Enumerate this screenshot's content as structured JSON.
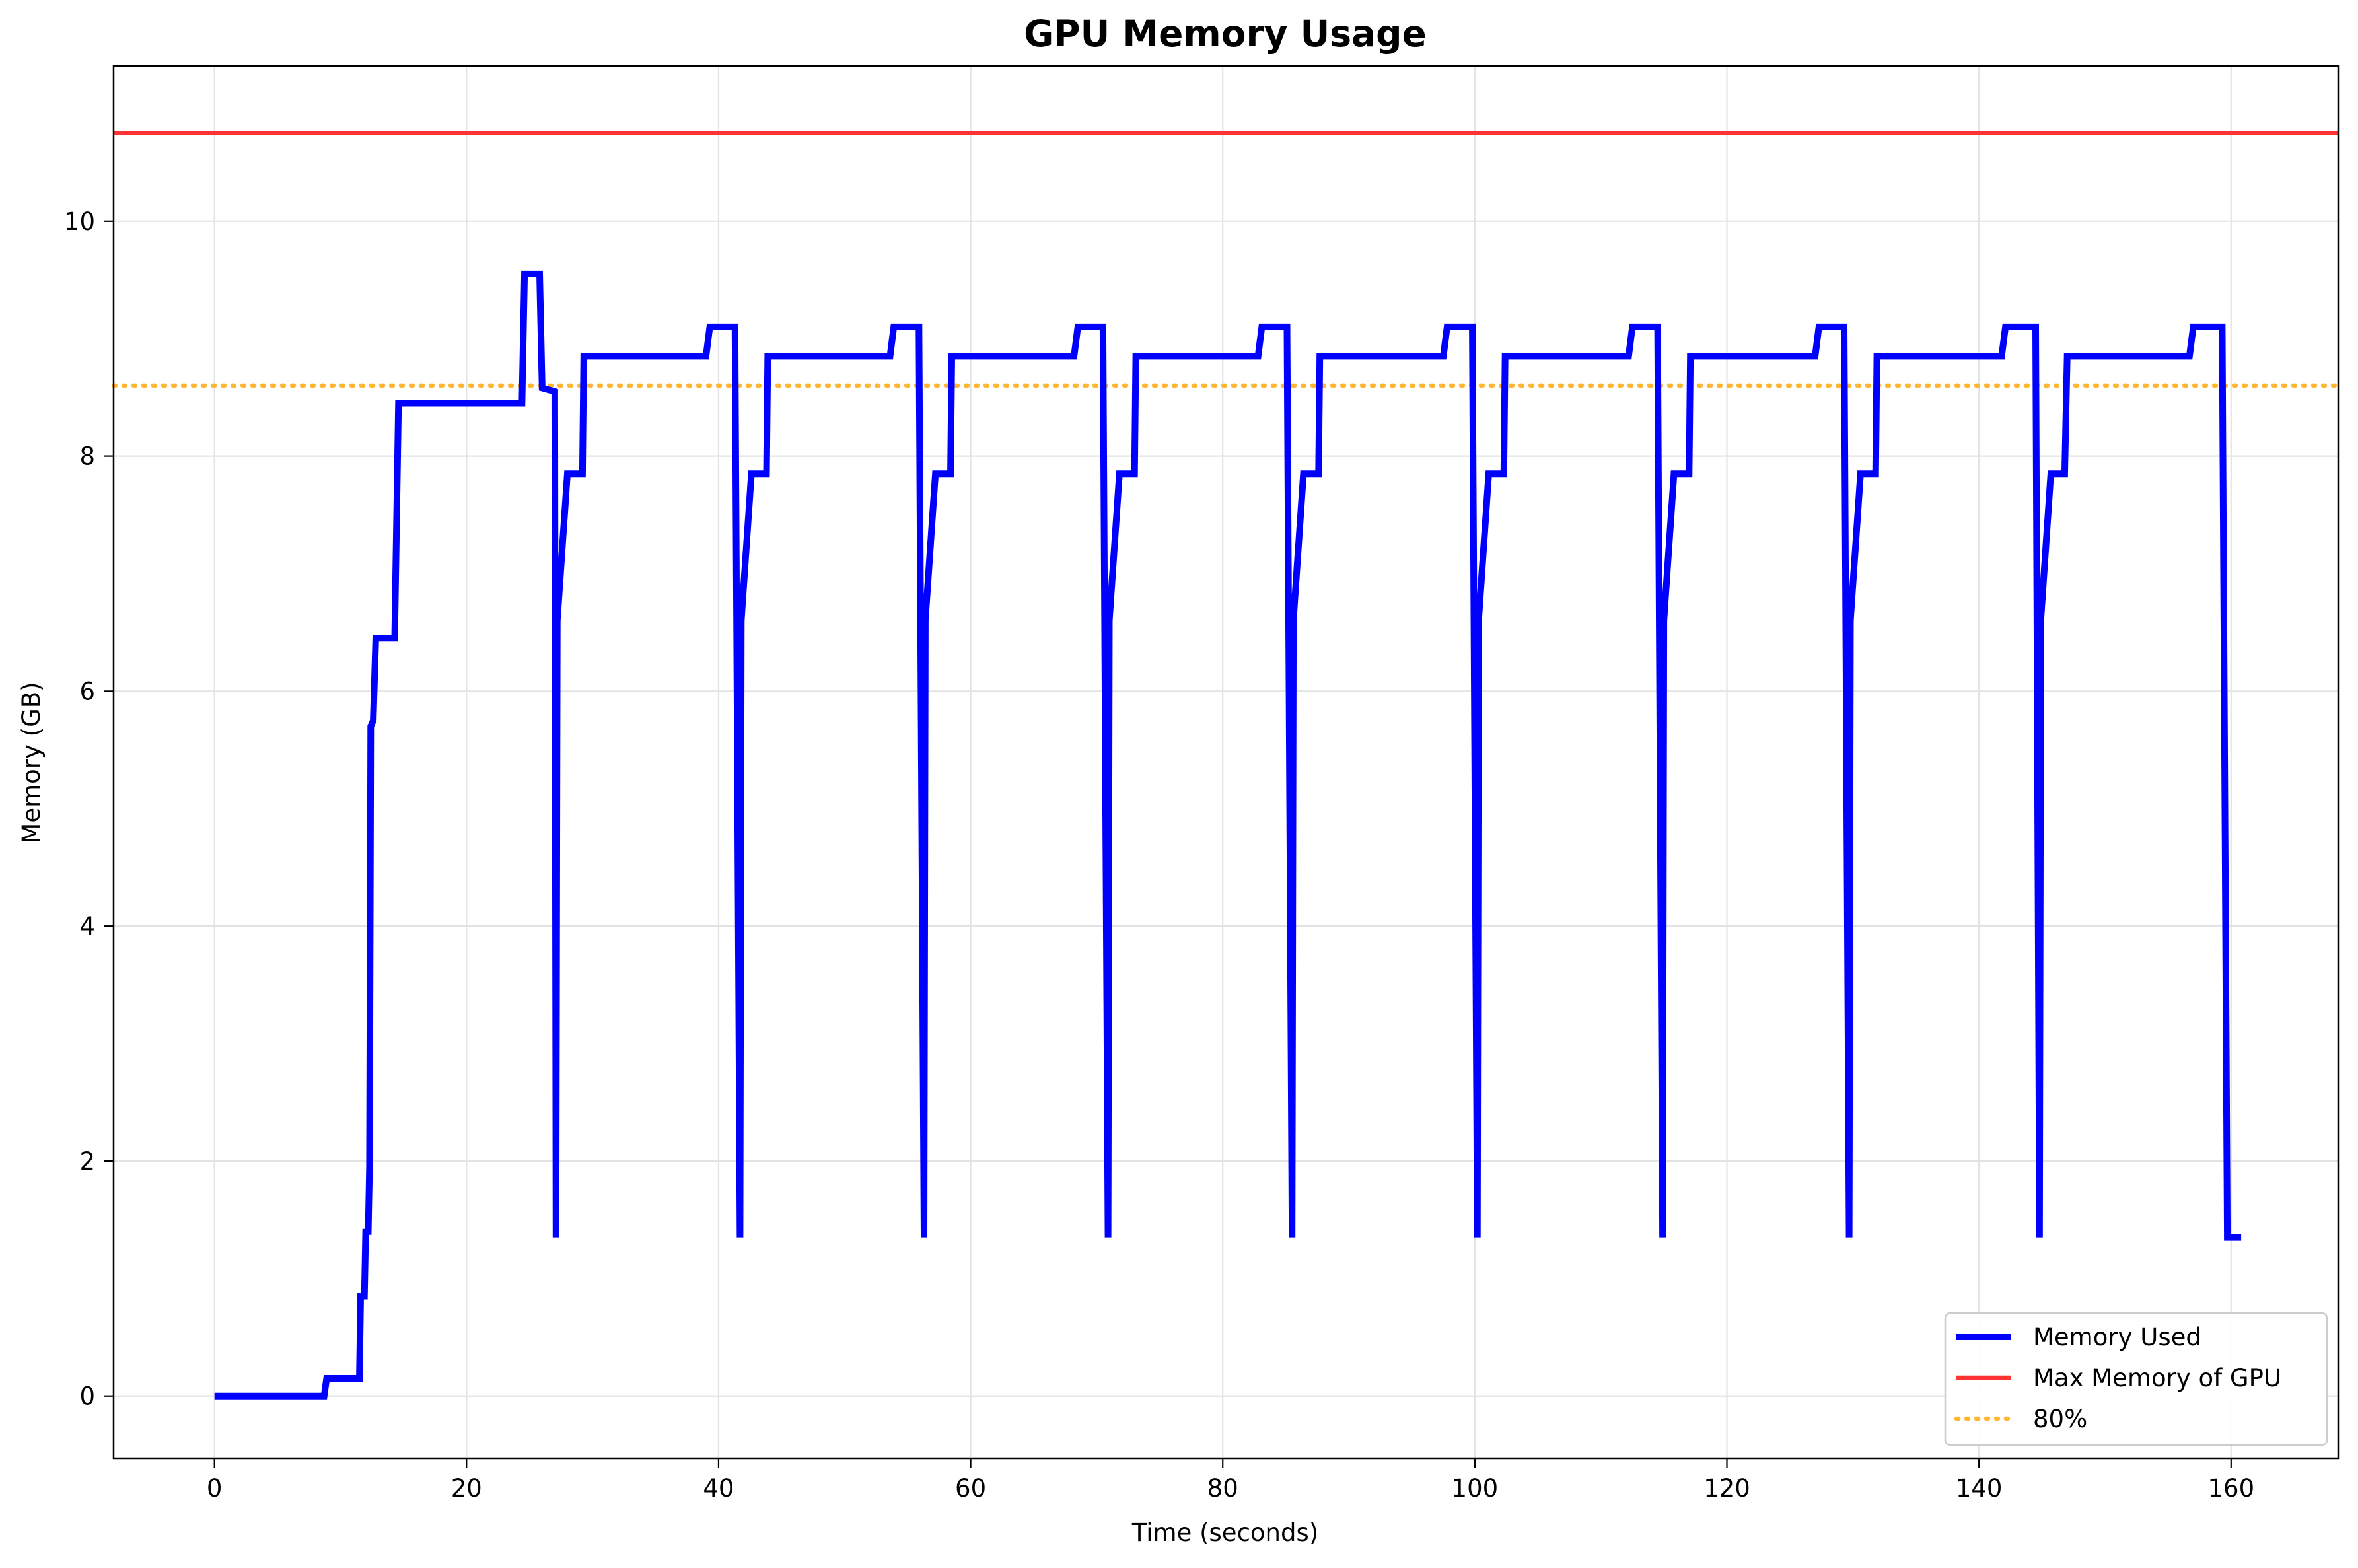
{
  "chart_data": {
    "type": "line",
    "title": "GPU Memory Usage",
    "xlabel": "Time (seconds)",
    "ylabel": "Memory (GB)",
    "xlim": [
      -8,
      168.5
    ],
    "ylim": [
      -0.53,
      11.32
    ],
    "xticks": [
      0,
      20,
      40,
      60,
      80,
      100,
      120,
      140,
      160
    ],
    "yticks": [
      0,
      2,
      4,
      6,
      8,
      10
    ],
    "grid": true,
    "legend_position": "bottom-right",
    "series": [
      {
        "name": "Memory Used",
        "color": "#0000ff",
        "style": "solid",
        "points": [
          [
            0,
            0
          ],
          [
            8.7,
            0
          ],
          [
            8.9,
            0.15
          ],
          [
            11.5,
            0.15
          ],
          [
            11.6,
            0.85
          ],
          [
            11.9,
            0.85
          ],
          [
            12.0,
            1.4
          ],
          [
            12.2,
            1.4
          ],
          [
            12.3,
            1.95
          ],
          [
            12.4,
            5.7
          ],
          [
            12.6,
            5.75
          ],
          [
            12.8,
            6.45
          ],
          [
            14.3,
            6.45
          ],
          [
            14.6,
            8.45
          ],
          [
            24.4,
            8.45
          ],
          [
            24.6,
            9.55
          ],
          [
            25.8,
            9.55
          ],
          [
            26.0,
            8.58
          ],
          [
            27.0,
            8.55
          ],
          [
            27.1,
            1.35
          ],
          [
            27.2,
            6.6
          ],
          [
            28.0,
            7.85
          ],
          [
            29.2,
            7.85
          ],
          [
            29.3,
            8.85
          ],
          [
            39.0,
            8.85
          ],
          [
            39.3,
            9.1
          ],
          [
            41.3,
            9.1
          ],
          [
            41.7,
            1.35
          ],
          [
            41.8,
            6.6
          ],
          [
            42.6,
            7.85
          ],
          [
            43.8,
            7.85
          ],
          [
            43.9,
            8.85
          ],
          [
            53.6,
            8.85
          ],
          [
            53.9,
            9.1
          ],
          [
            55.9,
            9.1
          ],
          [
            56.3,
            1.35
          ],
          [
            56.4,
            6.6
          ],
          [
            57.2,
            7.85
          ],
          [
            58.4,
            7.85
          ],
          [
            58.5,
            8.85
          ],
          [
            68.2,
            8.85
          ],
          [
            68.5,
            9.1
          ],
          [
            70.5,
            9.1
          ],
          [
            70.9,
            1.35
          ],
          [
            71.0,
            6.6
          ],
          [
            71.8,
            7.85
          ],
          [
            73.0,
            7.85
          ],
          [
            73.1,
            8.85
          ],
          [
            82.8,
            8.85
          ],
          [
            83.1,
            9.1
          ],
          [
            85.1,
            9.1
          ],
          [
            85.5,
            1.35
          ],
          [
            85.6,
            6.6
          ],
          [
            86.4,
            7.85
          ],
          [
            87.6,
            7.85
          ],
          [
            87.7,
            8.85
          ],
          [
            97.5,
            8.85
          ],
          [
            97.8,
            9.1
          ],
          [
            99.8,
            9.1
          ],
          [
            100.2,
            1.35
          ],
          [
            100.3,
            6.6
          ],
          [
            101.1,
            7.85
          ],
          [
            102.3,
            7.85
          ],
          [
            102.4,
            8.85
          ],
          [
            112.2,
            8.85
          ],
          [
            112.5,
            9.1
          ],
          [
            114.5,
            9.1
          ],
          [
            114.9,
            1.35
          ],
          [
            115.0,
            6.6
          ],
          [
            115.8,
            7.85
          ],
          [
            117.0,
            7.85
          ],
          [
            117.1,
            8.85
          ],
          [
            127.0,
            8.85
          ],
          [
            127.3,
            9.1
          ],
          [
            129.3,
            9.1
          ],
          [
            129.7,
            1.35
          ],
          [
            129.8,
            6.6
          ],
          [
            130.6,
            7.85
          ],
          [
            131.8,
            7.85
          ],
          [
            131.9,
            8.85
          ],
          [
            141.8,
            8.85
          ],
          [
            142.1,
            9.1
          ],
          [
            144.5,
            9.1
          ],
          [
            144.8,
            1.35
          ],
          [
            144.9,
            6.6
          ],
          [
            145.7,
            7.85
          ],
          [
            146.8,
            7.85
          ],
          [
            147.0,
            8.85
          ],
          [
            156.7,
            8.85
          ],
          [
            157.0,
            9.1
          ],
          [
            159.3,
            9.1
          ],
          [
            159.7,
            1.35
          ],
          [
            160.8,
            1.35
          ]
        ]
      },
      {
        "name": "Max Memory of GPU",
        "color": "#ff3333",
        "style": "solid",
        "y": 10.75
      },
      {
        "name": "80%",
        "color": "#ffb733",
        "style": "dotted",
        "y": 8.6
      }
    ]
  }
}
